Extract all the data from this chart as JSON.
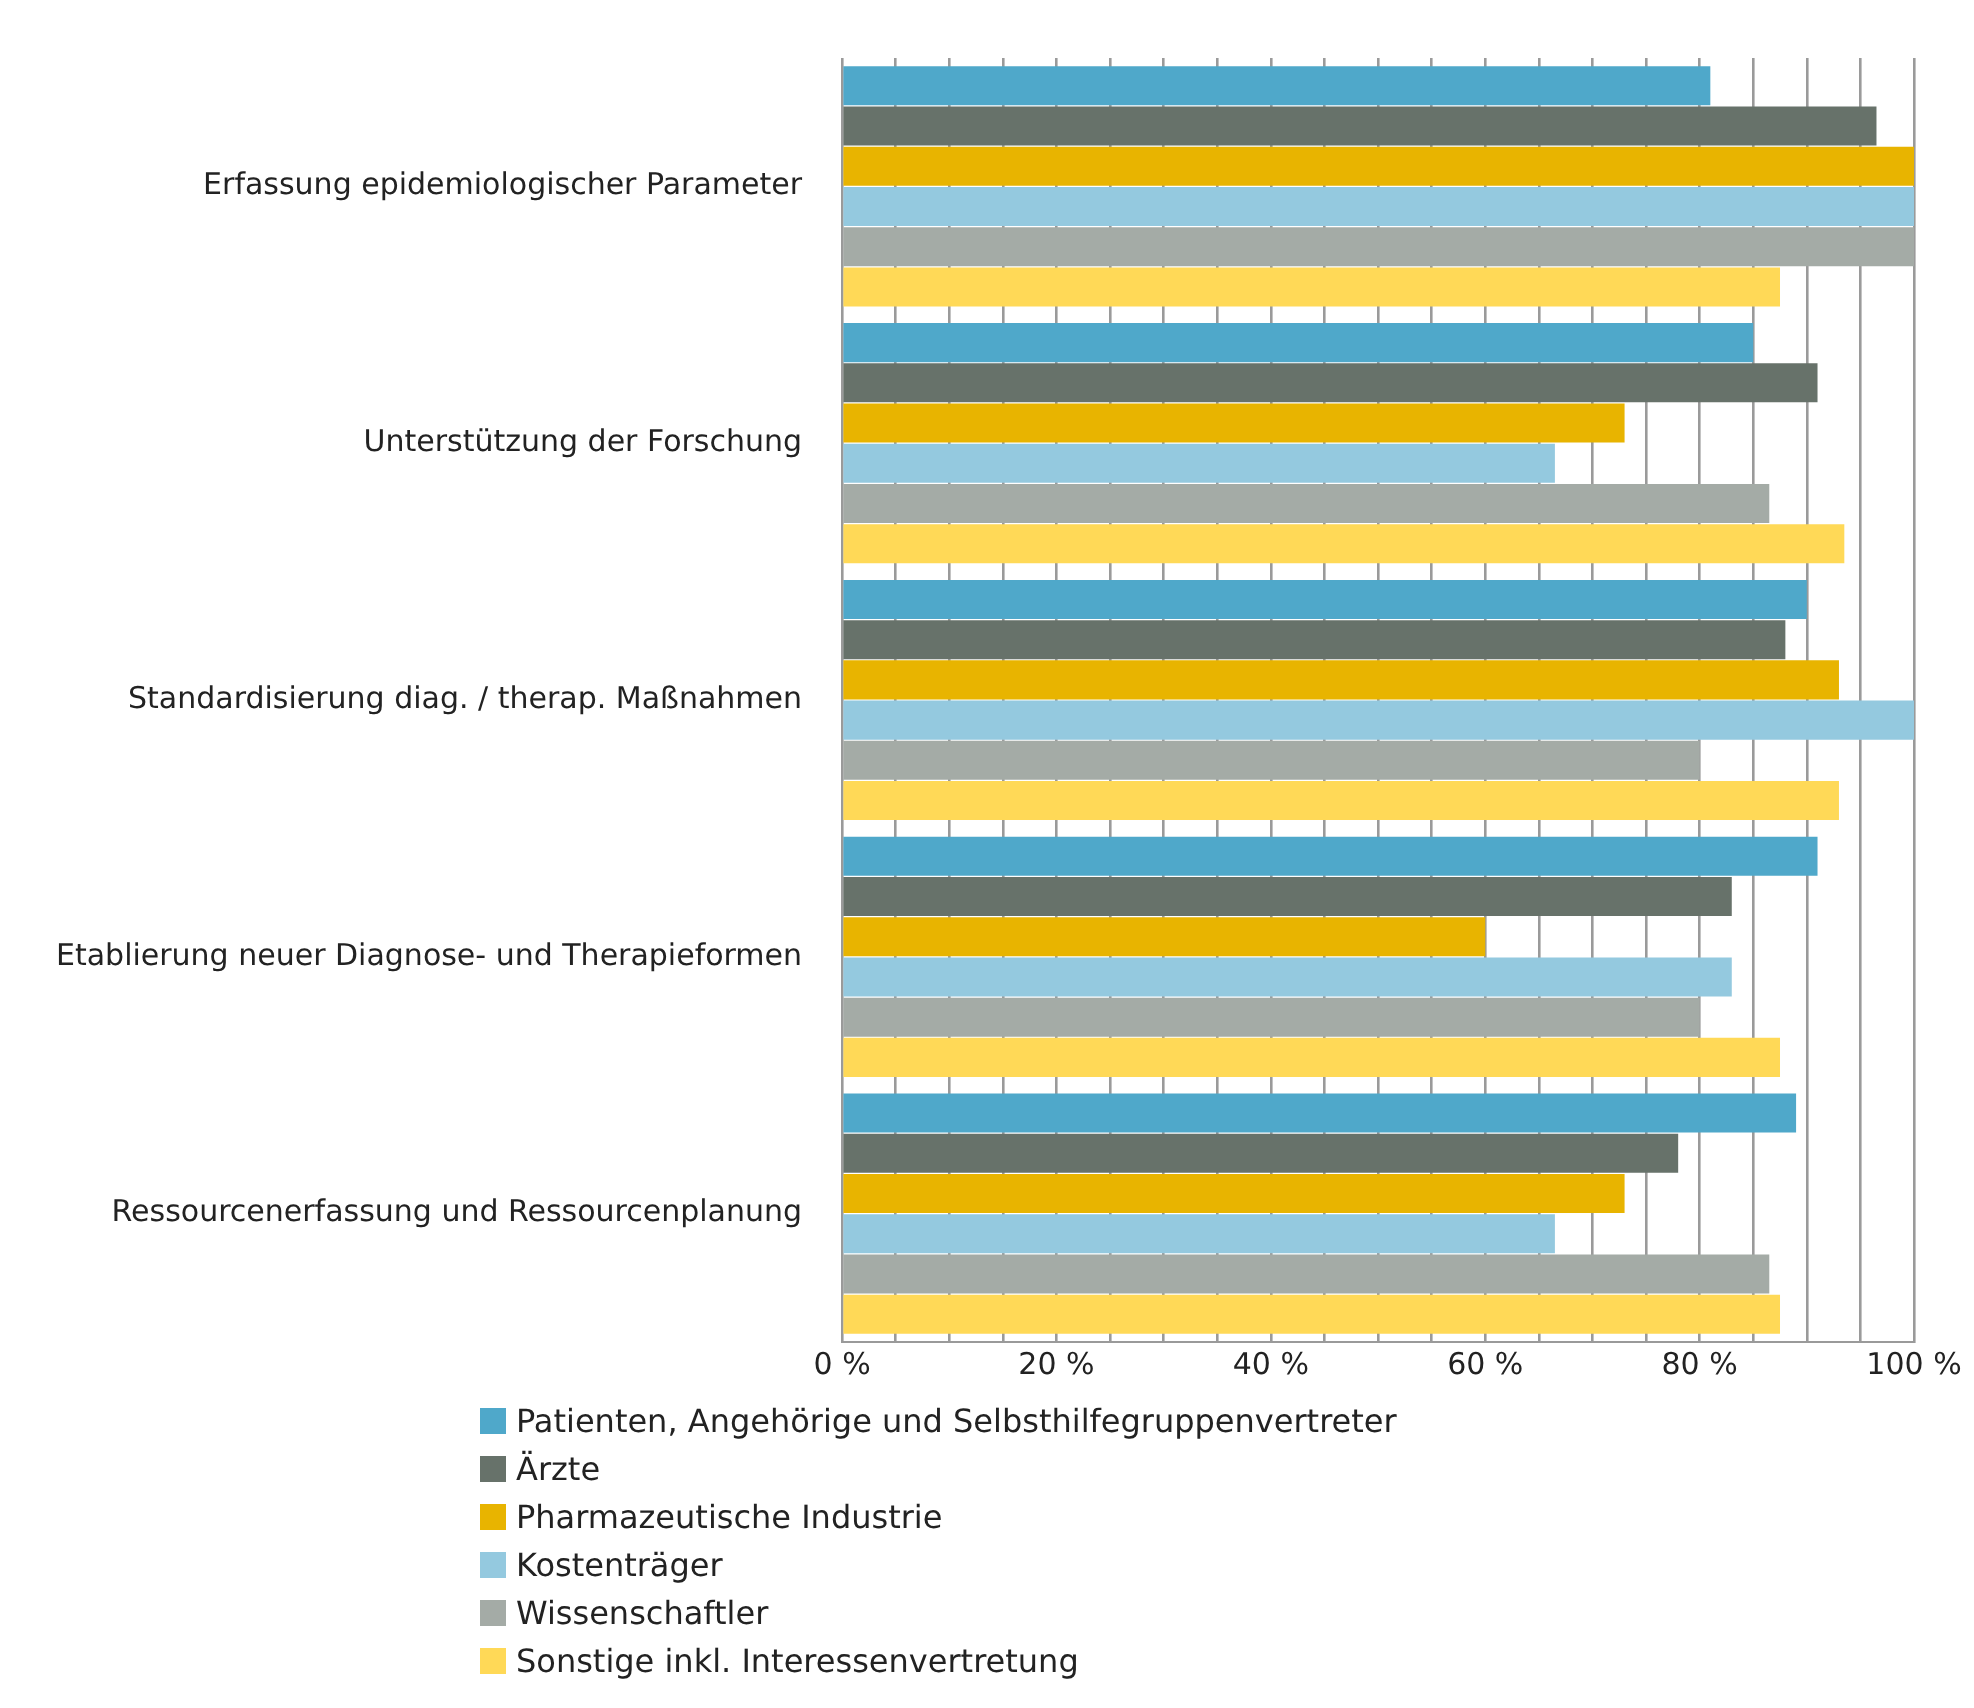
{
  "chart_data": {
    "type": "bar",
    "orientation": "horizontal",
    "categories": [
      "Erfassung epidemiologischer Parameter",
      "Unterstützung der Forschung",
      "Standardisierung diag. / therap. Maßnahmen",
      "Etablierung neuer Diagnose- und Therapieformen",
      "Ressourcenerfassung und Ressourcenplanung"
    ],
    "series": [
      {
        "name": "Patienten, Angehörige und Selbsthilfegruppenvertreter",
        "color": "#4fa8ca",
        "values": [
          81,
          85,
          90,
          91,
          89
        ]
      },
      {
        "name": "Ärzte",
        "color": "#67726a",
        "values": [
          96.5,
          91,
          88,
          83,
          78
        ]
      },
      {
        "name": "Pharmazeutische Industrie",
        "color": "#e8b400",
        "values": [
          100,
          73,
          93,
          60,
          73
        ]
      },
      {
        "name": "Kostenträger",
        "color": "#94c9df",
        "values": [
          100,
          66.5,
          100,
          83,
          66.5
        ]
      },
      {
        "name": "Wissenschaftler",
        "color": "#a4aba6",
        "values": [
          100,
          86.5,
          80,
          80,
          86.5
        ]
      },
      {
        "name": "Sonstige inkl. Interessenvertretung",
        "color": "#ffd957",
        "values": [
          87.5,
          93.5,
          93,
          87.5,
          87.5
        ]
      }
    ],
    "xlim": [
      0,
      100
    ],
    "xticks": [
      {
        "value": 0,
        "label": "0 %"
      },
      {
        "value": 5,
        "label": null
      },
      {
        "value": 10,
        "label": null
      },
      {
        "value": 15,
        "label": null
      },
      {
        "value": 20,
        "label": "20 %"
      },
      {
        "value": 25,
        "label": null
      },
      {
        "value": 30,
        "label": null
      },
      {
        "value": 35,
        "label": null
      },
      {
        "value": 40,
        "label": "40 %"
      },
      {
        "value": 45,
        "label": null
      },
      {
        "value": 50,
        "label": null
      },
      {
        "value": 55,
        "label": null
      },
      {
        "value": 60,
        "label": "60 %"
      },
      {
        "value": 65,
        "label": null
      },
      {
        "value": 70,
        "label": null
      },
      {
        "value": 75,
        "label": null
      },
      {
        "value": 80,
        "label": "80 %"
      },
      {
        "value": 85,
        "label": null
      },
      {
        "value": 90,
        "label": null
      },
      {
        "value": 95,
        "label": null
      },
      {
        "value": 100,
        "label": "100 %"
      }
    ],
    "grid": "x",
    "legend": "bottom"
  }
}
